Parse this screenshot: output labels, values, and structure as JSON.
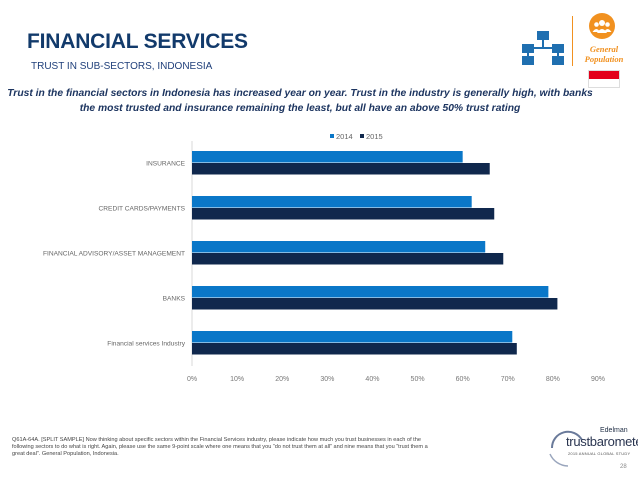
{
  "header": {
    "title": "FINANCIAL SERVICES",
    "subtitle": "TRUST IN SUB-SECTORS, INDONESIA",
    "headline": "Trust in the financial sectors in Indonesia has increased year on year. Trust in the industry is generally high, with banks the most trusted and insurance remaining the least, but all have an above 50% trust rating"
  },
  "badge": {
    "label_line1": "General",
    "label_line2": "Population",
    "icons": [
      "org-chart-icon",
      "people-group-icon",
      "indonesia-flag-icon"
    ]
  },
  "colors": {
    "accent": "#f19120",
    "series_2014": "#0a77c8",
    "series_2015": "#10284d",
    "title": "#123a6b"
  },
  "chart_data": {
    "type": "bar",
    "orientation": "horizontal",
    "categories": [
      "INSURANCE",
      "CREDIT CARDS/PAYMENTS",
      "FINANCIAL ADVISORY/ASSET MANAGEMENT",
      "BANKS",
      "Financial services Industry"
    ],
    "series": [
      {
        "name": "2014",
        "color": "#0a77c8",
        "values": [
          60,
          62,
          65,
          79,
          71
        ]
      },
      {
        "name": "2015",
        "color": "#10284d",
        "values": [
          66,
          67,
          69,
          81,
          72
        ]
      }
    ],
    "xlim": [
      0,
      90
    ],
    "xticks": [
      "0%",
      "10%",
      "20%",
      "30%",
      "40%",
      "50%",
      "60%",
      "70%",
      "80%",
      "90%"
    ],
    "legend_position": "top",
    "grid": false
  },
  "footnote": "Q61A-64A. [SPLIT SAMPLE] Now thinking about specific sectors within the Financial Services industry, please indicate how much you trust businesses in each of the following sectors to do what is right. Again, please use the same 9-point scale where one means that you “do not trust them at all” and nine means that you “trust them a great deal”. General Population, Indonesia.",
  "logo": {
    "company": "Edelman",
    "brand": "trustbarometer",
    "tagline": "2015 ANNUAL GLOBAL STUDY"
  },
  "page_number": "28"
}
